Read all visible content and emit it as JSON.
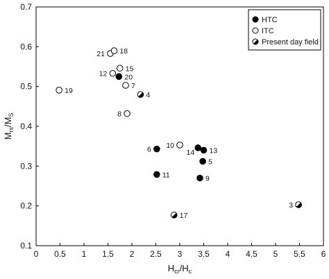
{
  "chart_data": {
    "type": "scatter",
    "title": "",
    "xlabel": {
      "main": "H",
      "sub1": "cr",
      "mid": "/H",
      "sub2": "c"
    },
    "ylabel": {
      "main": "M",
      "sub1": "rs",
      "mid": "/M",
      "sub2": "S"
    },
    "xlim": [
      0,
      6
    ],
    "ylim": [
      0.1,
      0.7
    ],
    "xticks": [
      "0",
      "0.5",
      "1",
      "1.5",
      "2",
      "2.5",
      "3",
      "3.5",
      "4",
      "4.5",
      "5",
      "5.5",
      "6"
    ],
    "yticks": [
      "0.1",
      "0.2",
      "0.3",
      "0.4",
      "0.5",
      "0.6",
      "0.7"
    ],
    "grid": false,
    "legend_position": "top-right",
    "series": [
      {
        "name": "HTC",
        "marker": "filled-circle",
        "points": [
          {
            "label": "6",
            "x": 2.52,
            "y": 0.343,
            "label_side": "left"
          },
          {
            "label": "14",
            "x": 3.38,
            "y": 0.346,
            "label_side": "below-left"
          },
          {
            "label": "13",
            "x": 3.5,
            "y": 0.34,
            "label_side": "right"
          },
          {
            "label": "5",
            "x": 3.48,
            "y": 0.312,
            "label_side": "right"
          },
          {
            "label": "11",
            "x": 2.52,
            "y": 0.279,
            "label_side": "right"
          },
          {
            "label": "9",
            "x": 3.42,
            "y": 0.27,
            "label_side": "right"
          },
          {
            "label": "20",
            "x": 1.73,
            "y": 0.525,
            "label_side": "right"
          }
        ]
      },
      {
        "name": "ITC",
        "marker": "open-circle",
        "points": [
          {
            "label": "19",
            "x": 0.48,
            "y": 0.491,
            "label_side": "right"
          },
          {
            "label": "21",
            "x": 1.55,
            "y": 0.583,
            "label_side": "left"
          },
          {
            "label": "18",
            "x": 1.63,
            "y": 0.59,
            "label_side": "right"
          },
          {
            "label": "12",
            "x": 1.6,
            "y": 0.533,
            "label_side": "left"
          },
          {
            "label": "15",
            "x": 1.75,
            "y": 0.546,
            "label_side": "right"
          },
          {
            "label": "7",
            "x": 1.87,
            "y": 0.503,
            "label_side": "right"
          },
          {
            "label": "8",
            "x": 1.9,
            "y": 0.432,
            "label_side": "left"
          },
          {
            "label": "10",
            "x": 3.0,
            "y": 0.353,
            "label_side": "left"
          }
        ]
      },
      {
        "name": "Present day field",
        "marker": "half-filled-circle",
        "points": [
          {
            "label": "4",
            "x": 2.18,
            "y": 0.48,
            "label_side": "right"
          },
          {
            "label": "17",
            "x": 2.88,
            "y": 0.177,
            "label_side": "right"
          },
          {
            "label": "3",
            "x": 5.48,
            "y": 0.203,
            "label_side": "left"
          }
        ]
      }
    ]
  }
}
